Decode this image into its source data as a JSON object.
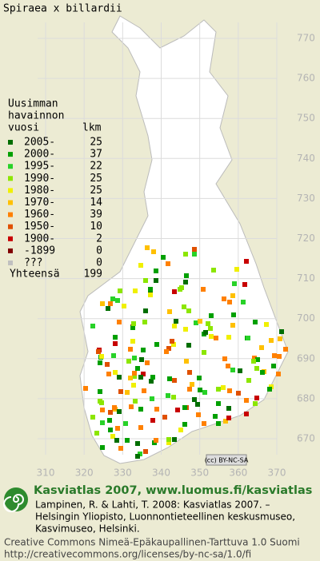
{
  "map": {
    "title": "Spiraea x billardii",
    "yticks": [
      770,
      760,
      750,
      740,
      730,
      720,
      710,
      700,
      690,
      680,
      670
    ],
    "xticks": [
      310,
      320,
      330,
      340,
      350,
      360,
      370
    ],
    "land_color": "#ffffff",
    "grid_color": "#dcdcdc",
    "badge": "(cc) BY-NC-SA"
  },
  "legend": {
    "heading": [
      "Uusimman",
      "havainnon",
      "vuosi"
    ],
    "count_heading": "lkm",
    "items": [
      {
        "label": "2005-",
        "count": 25,
        "color": "#006e00"
      },
      {
        "label": "2000-",
        "count": 37,
        "color": "#00a000"
      },
      {
        "label": "1995-",
        "count": 22,
        "color": "#28d228"
      },
      {
        "label": "1990-",
        "count": 25,
        "color": "#8ce600"
      },
      {
        "label": "1980-",
        "count": 25,
        "color": "#f0f000"
      },
      {
        "label": "1970-",
        "count": 14,
        "color": "#ffc000"
      },
      {
        "label": "1960-",
        "count": 39,
        "color": "#ff8000"
      },
      {
        "label": "1950-",
        "count": 10,
        "color": "#e05000"
      },
      {
        "label": "1900-",
        "count": 2,
        "color": "#c80000"
      },
      {
        "label": "-1899",
        "count": 0,
        "color": "#800000"
      },
      {
        "label": "???",
        "count": 0,
        "color": "#c0c0c0"
      }
    ],
    "total_label": "Yhteensä",
    "total": 199
  },
  "footer": {
    "heading": "Kasviatlas 2007, www.luomus.fi/kasviatlas",
    "citation": [
      "Lampinen, R. & Lahti, T. 2008: Kasviatlas 2007. –",
      "Helsingin Yliopisto, Luonnontieteellinen keskusmuseo,",
      "Kasvimuseo, Helsinki."
    ],
    "license": [
      "Creative Commons Nimeä-Epäkaupallinen-Tarttuva 1.0 Suomi",
      "http://creativecommons.org/licenses/by-nc-sa/1.0/fi"
    ]
  }
}
